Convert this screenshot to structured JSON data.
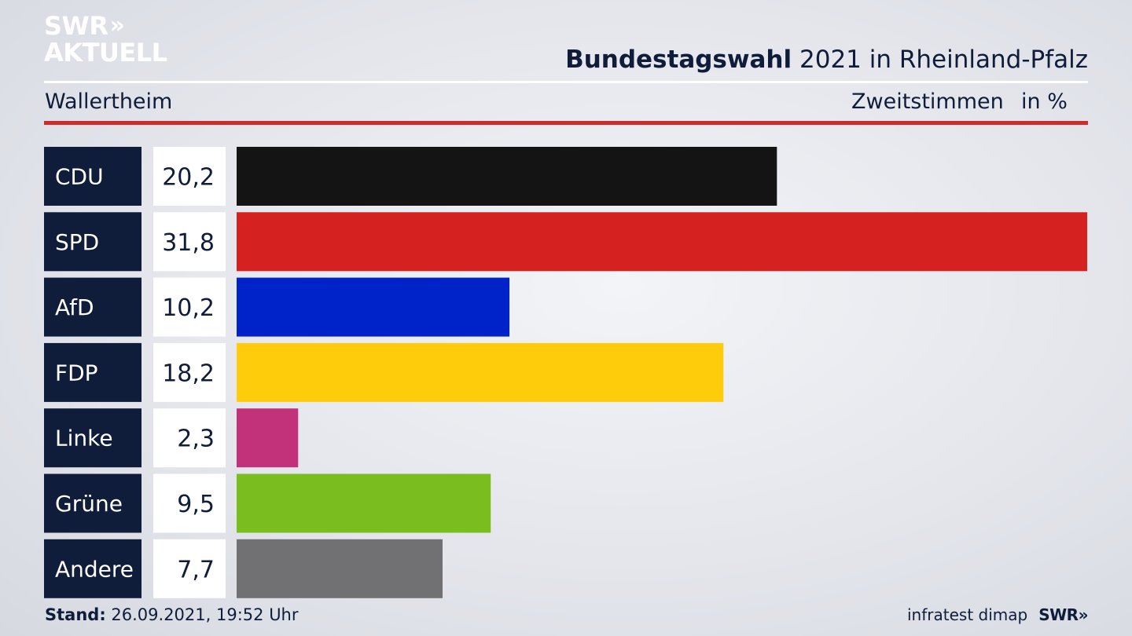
{
  "header": {
    "logo_line1": "SWR",
    "logo_arrows": "»",
    "logo_line2": "AKTUELL",
    "title_bold": "Bundestagswahl",
    "title_rest": "2021 in Rheinland-Pfalz",
    "place": "Wallertheim",
    "vote_type": "Zweitstimmen",
    "unit": "in %"
  },
  "chart_data": {
    "type": "bar",
    "orientation": "horizontal",
    "categories": [
      "CDU",
      "SPD",
      "AfD",
      "FDP",
      "Linke",
      "Grüne",
      "Andere"
    ],
    "values": [
      20.2,
      31.8,
      10.2,
      18.2,
      2.3,
      9.5,
      7.7
    ],
    "value_labels": [
      "20,2",
      "31,8",
      "10,2",
      "18,2",
      "2,3",
      "9,5",
      "7,7"
    ],
    "colors": [
      "#141414",
      "#d62121",
      "#0022c9",
      "#fecc0a",
      "#c1327a",
      "#79bd1e",
      "#717173"
    ],
    "xlim": [
      0,
      31.8
    ],
    "grid": false
  },
  "colors": {
    "label_box": "#0f1c3a",
    "value_box": "#ffffff",
    "accent_red": "#d02b2b"
  },
  "footer": {
    "stand_label": "Stand:",
    "stand_value": "26.09.2021, 19:52 Uhr",
    "source": "infratest dimap",
    "brand": "SWR",
    "brand_arrows": "»"
  }
}
